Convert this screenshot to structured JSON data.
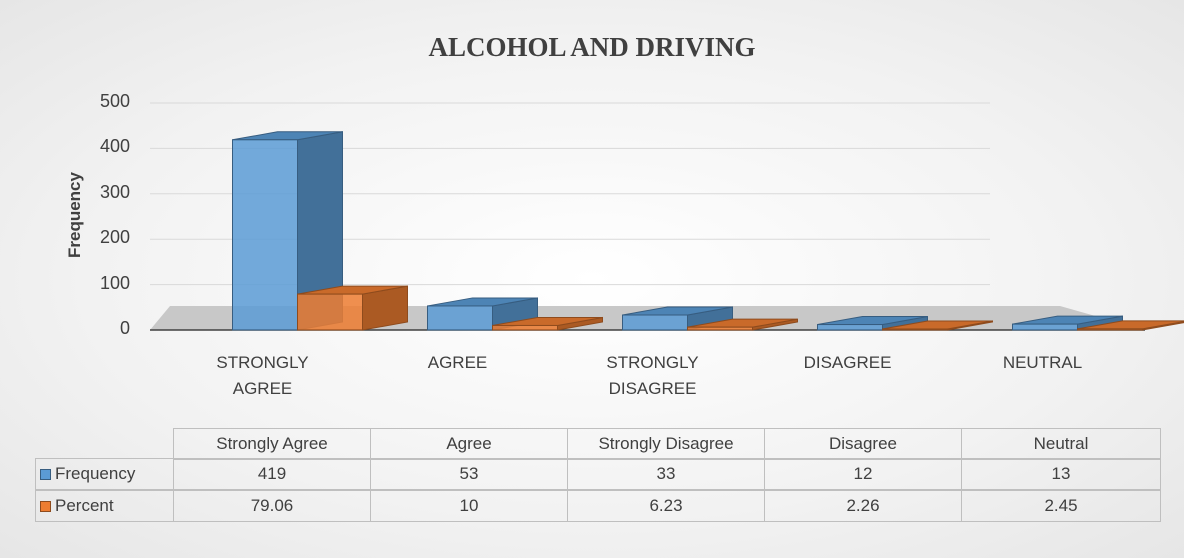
{
  "chart_data": {
    "type": "bar3d",
    "title": "ALCOHOL AND DRIVING",
    "y_label": "Frequency",
    "categories": [
      "STRONGLY AGREE",
      "AGREE",
      "STRONGLY DISAGREE",
      "DISAGREE",
      "NEUTRAL"
    ],
    "table_header": [
      "Strongly Agree",
      "Agree",
      "Strongly Disagree",
      "Disagree",
      "Neutral"
    ],
    "series": [
      {
        "name": "Frequency",
        "color": "#5b9bd5",
        "values": [
          419,
          53,
          33,
          12,
          13
        ]
      },
      {
        "name": "Percent",
        "color": "#ed7d31",
        "values": [
          79.06,
          10,
          6.23,
          2.26,
          2.45
        ]
      }
    ],
    "ylim": [
      0,
      500
    ],
    "yticks": [
      0,
      100,
      200,
      300,
      400,
      500
    ],
    "grid": true
  }
}
